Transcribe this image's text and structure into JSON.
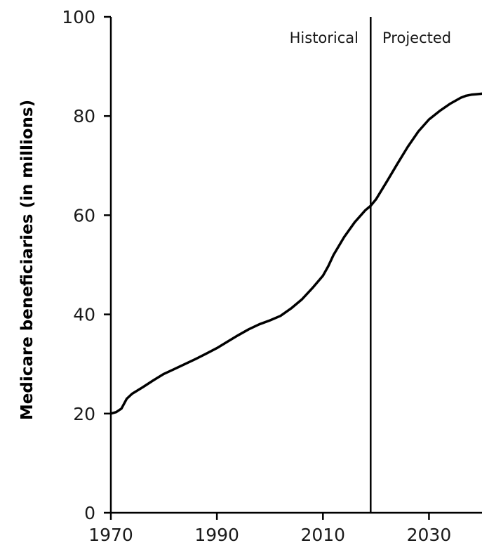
{
  "chart_data": {
    "type": "line",
    "title": "",
    "xlabel": "",
    "ylabel": "Medicare beneficiaries (in millions)",
    "xlim": [
      1970,
      2040
    ],
    "ylim": [
      0,
      100
    ],
    "x_ticks": [
      1970,
      1990,
      2010,
      2030
    ],
    "y_ticks": [
      0,
      20,
      40,
      60,
      80,
      100
    ],
    "grid": false,
    "divider": {
      "x": 2019,
      "left_label": "Historical",
      "right_label": "Projected"
    },
    "series": [
      {
        "x": [
          1970,
          1971,
          1972,
          1973,
          1974,
          1976,
          1978,
          1980,
          1982,
          1984,
          1986,
          1988,
          1990,
          1992,
          1994,
          1996,
          1998,
          2000,
          2002,
          2004,
          2006,
          2008,
          2010,
          2011,
          2012,
          2014,
          2016,
          2018,
          2019,
          2020,
          2022,
          2024,
          2026,
          2028,
          2030,
          2032,
          2034,
          2036,
          2037,
          2038,
          2039,
          2040
        ],
        "y": [
          20.0,
          20.3,
          21.0,
          23.0,
          24.0,
          25.3,
          26.7,
          28.0,
          29.0,
          30.0,
          31.0,
          32.1,
          33.2,
          34.5,
          35.8,
          37.0,
          38.0,
          38.8,
          39.7,
          41.2,
          43.0,
          45.3,
          47.8,
          49.7,
          52.0,
          55.6,
          58.6,
          61.0,
          61.9,
          63.2,
          66.7,
          70.3,
          73.8,
          76.9,
          79.3,
          81.0,
          82.5,
          83.7,
          84.1,
          84.3,
          84.4,
          84.5
        ]
      }
    ]
  }
}
